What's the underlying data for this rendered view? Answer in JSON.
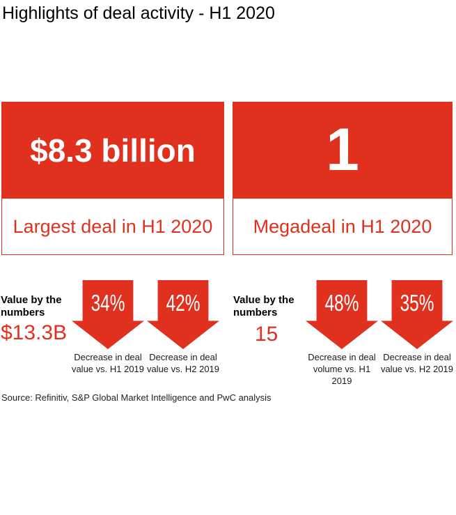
{
  "page": {
    "title": "Highlights of deal activity - H1 2020",
    "background_color": "#ffffff",
    "accent_red": "#e0301e",
    "source": "Source: Refinitiv, S&P Global Market Intelligence and PwC analysis"
  },
  "cards": [
    {
      "value": "$8.3 billion",
      "label": "Largest deal in H1 2020"
    },
    {
      "value": "1",
      "label": "Megadeal in H1 2020"
    }
  ],
  "stats": [
    {
      "heading": "Value by the numbers",
      "value": "$13.3B",
      "arrows": [
        {
          "percent": "34%",
          "caption": "Decrease in deal value vs. H1 2019"
        },
        {
          "percent": "42%",
          "caption": "Decrease in deal value vs. H2 2019"
        }
      ]
    },
    {
      "heading": "Value by the numbers",
      "value": "15",
      "arrows": [
        {
          "percent": "48%",
          "caption": "Decrease in deal volume vs. H1 2019"
        },
        {
          "percent": "35%",
          "caption": "Decrease in deal value vs. H2 2019"
        }
      ]
    }
  ],
  "chart_data": {
    "type": "table",
    "title": "Highlights of deal activity - H1 2020",
    "metrics": [
      {
        "label": "Largest deal in H1 2020",
        "value": "$8.3 billion"
      },
      {
        "label": "Megadeal in H1 2020",
        "value": 1
      },
      {
        "label": "Value by the numbers (deal value)",
        "value": "$13.3B",
        "changes": [
          {
            "change_pct": -34,
            "caption": "Decrease in deal value vs. H1 2019"
          },
          {
            "change_pct": -42,
            "caption": "Decrease in deal value vs. H2 2019"
          }
        ]
      },
      {
        "label": "Value by the numbers (deal volume)",
        "value": 15,
        "changes": [
          {
            "change_pct": -48,
            "caption": "Decrease in deal volume vs. H1 2019"
          },
          {
            "change_pct": -35,
            "caption": "Decrease in deal value vs. H2 2019"
          }
        ]
      }
    ],
    "source": "Source: Refinitiv, S&P Global Market Intelligence and PwC analysis"
  }
}
